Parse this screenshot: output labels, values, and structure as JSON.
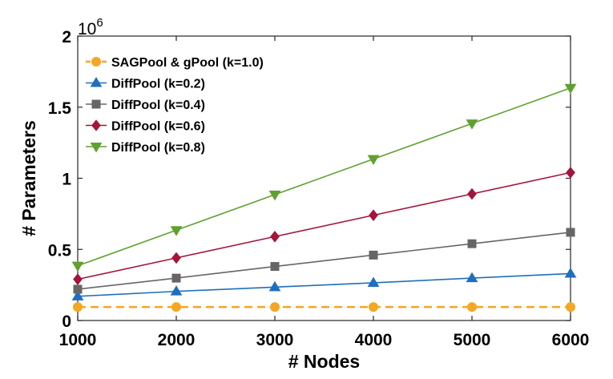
{
  "chart_data": {
    "type": "line",
    "title": "",
    "xlabel": "# Nodes",
    "ylabel": "# Parameters",
    "y_multiplier": "10",
    "y_multiplier_exp": "6",
    "x": [
      1000,
      2000,
      3000,
      4000,
      5000,
      6000
    ],
    "x_ticks": [
      "1000",
      "2000",
      "3000",
      "4000",
      "5000",
      "6000"
    ],
    "y_ticks": [
      "0",
      "0.5",
      "1",
      "1.5",
      "2"
    ],
    "xlim": [
      1000,
      6000
    ],
    "ylim": [
      0,
      2
    ],
    "grid": false,
    "legend_position": "top-left",
    "series": [
      {
        "name": "SAGPool & gPool (k=1.0)",
        "color": "#F5A623",
        "marker": "circle",
        "dashed": true,
        "values": [
          0.095,
          0.095,
          0.095,
          0.095,
          0.095,
          0.095
        ]
      },
      {
        "name": "DiffPool (k=0.2)",
        "color": "#1F6FBF",
        "marker": "triangle-up",
        "dashed": false,
        "values": [
          0.17,
          0.205,
          0.235,
          0.265,
          0.298,
          0.33
        ]
      },
      {
        "name": "DiffPool (k=0.4)",
        "color": "#666666",
        "marker": "square",
        "dashed": false,
        "values": [
          0.22,
          0.298,
          0.38,
          0.46,
          0.54,
          0.62
        ]
      },
      {
        "name": "DiffPool (k=0.6)",
        "color": "#A3153A",
        "marker": "diamond",
        "dashed": false,
        "values": [
          0.29,
          0.44,
          0.59,
          0.74,
          0.89,
          1.04
        ]
      },
      {
        "name": "DiffPool (k=0.8)",
        "color": "#5FA12E",
        "marker": "triangle-down",
        "dashed": false,
        "values": [
          0.385,
          0.635,
          0.885,
          1.135,
          1.385,
          1.635
        ]
      }
    ]
  }
}
